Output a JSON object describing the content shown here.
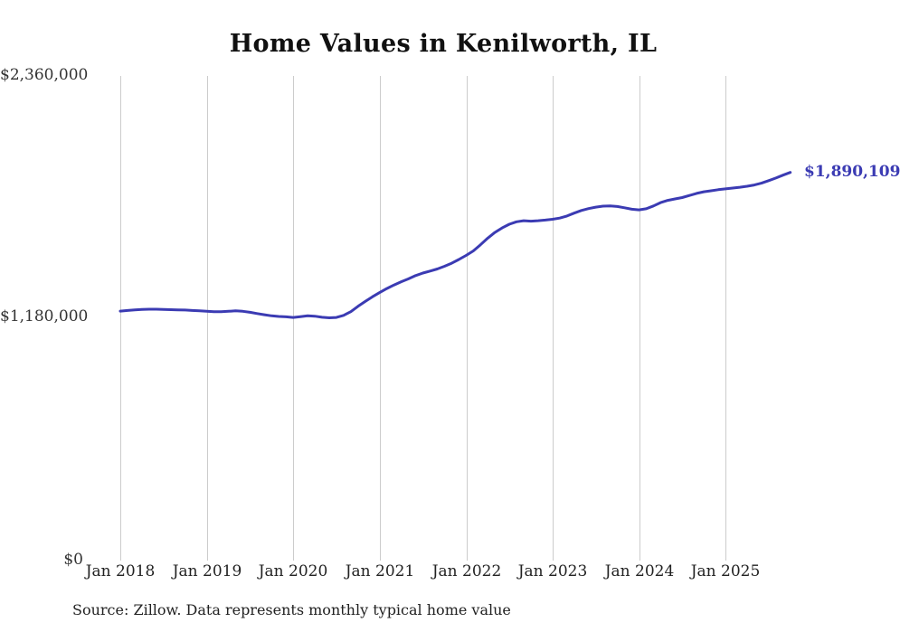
{
  "chart_data": {
    "type": "line",
    "title": "Home Values in Kenilworth, IL",
    "x_tick_labels": [
      "Jan 2018",
      "Jan 2019",
      "Jan 2020",
      "Jan 2021",
      "Jan 2022",
      "Jan 2023",
      "Jan 2024",
      "Jan 2025"
    ],
    "y_tick_labels": [
      "$2,360,000",
      "$1,180,000",
      "$0"
    ],
    "y_axis": {
      "min": 0,
      "max": 2360000
    },
    "x_start": "2018-01",
    "x_end": "2025-10",
    "grid": "vertical-only",
    "legend": "none",
    "line_color": "#3b3bb3",
    "end_label": "$1,890,109",
    "end_value": 1890109,
    "values": [
      1215000,
      1218000,
      1221000,
      1223000,
      1224000,
      1224000,
      1223000,
      1222000,
      1221000,
      1220000,
      1218000,
      1216000,
      1214000,
      1212000,
      1212000,
      1214000,
      1216000,
      1214000,
      1209000,
      1203000,
      1197000,
      1192000,
      1189000,
      1187000,
      1184000,
      1188000,
      1192000,
      1190000,
      1185000,
      1182000,
      1184000,
      1194000,
      1212000,
      1238000,
      1262000,
      1285000,
      1305000,
      1325000,
      1342000,
      1358000,
      1372000,
      1388000,
      1400000,
      1410000,
      1420000,
      1433000,
      1448000,
      1466000,
      1486000,
      1508000,
      1538000,
      1570000,
      1598000,
      1620000,
      1638000,
      1650000,
      1655000,
      1653000,
      1655000,
      1658000,
      1662000,
      1668000,
      1678000,
      1692000,
      1705000,
      1714000,
      1721000,
      1726000,
      1727000,
      1724000,
      1718000,
      1711000,
      1708000,
      1713000,
      1727000,
      1743000,
      1754000,
      1761000,
      1768000,
      1778000,
      1788000,
      1796000,
      1801000,
      1806000,
      1810000,
      1814000,
      1818000,
      1823000,
      1829000,
      1838000,
      1850000,
      1863000,
      1877000,
      1890109
    ]
  },
  "footer": {
    "source": "Source: Zillow. Data represents monthly typical home value"
  }
}
